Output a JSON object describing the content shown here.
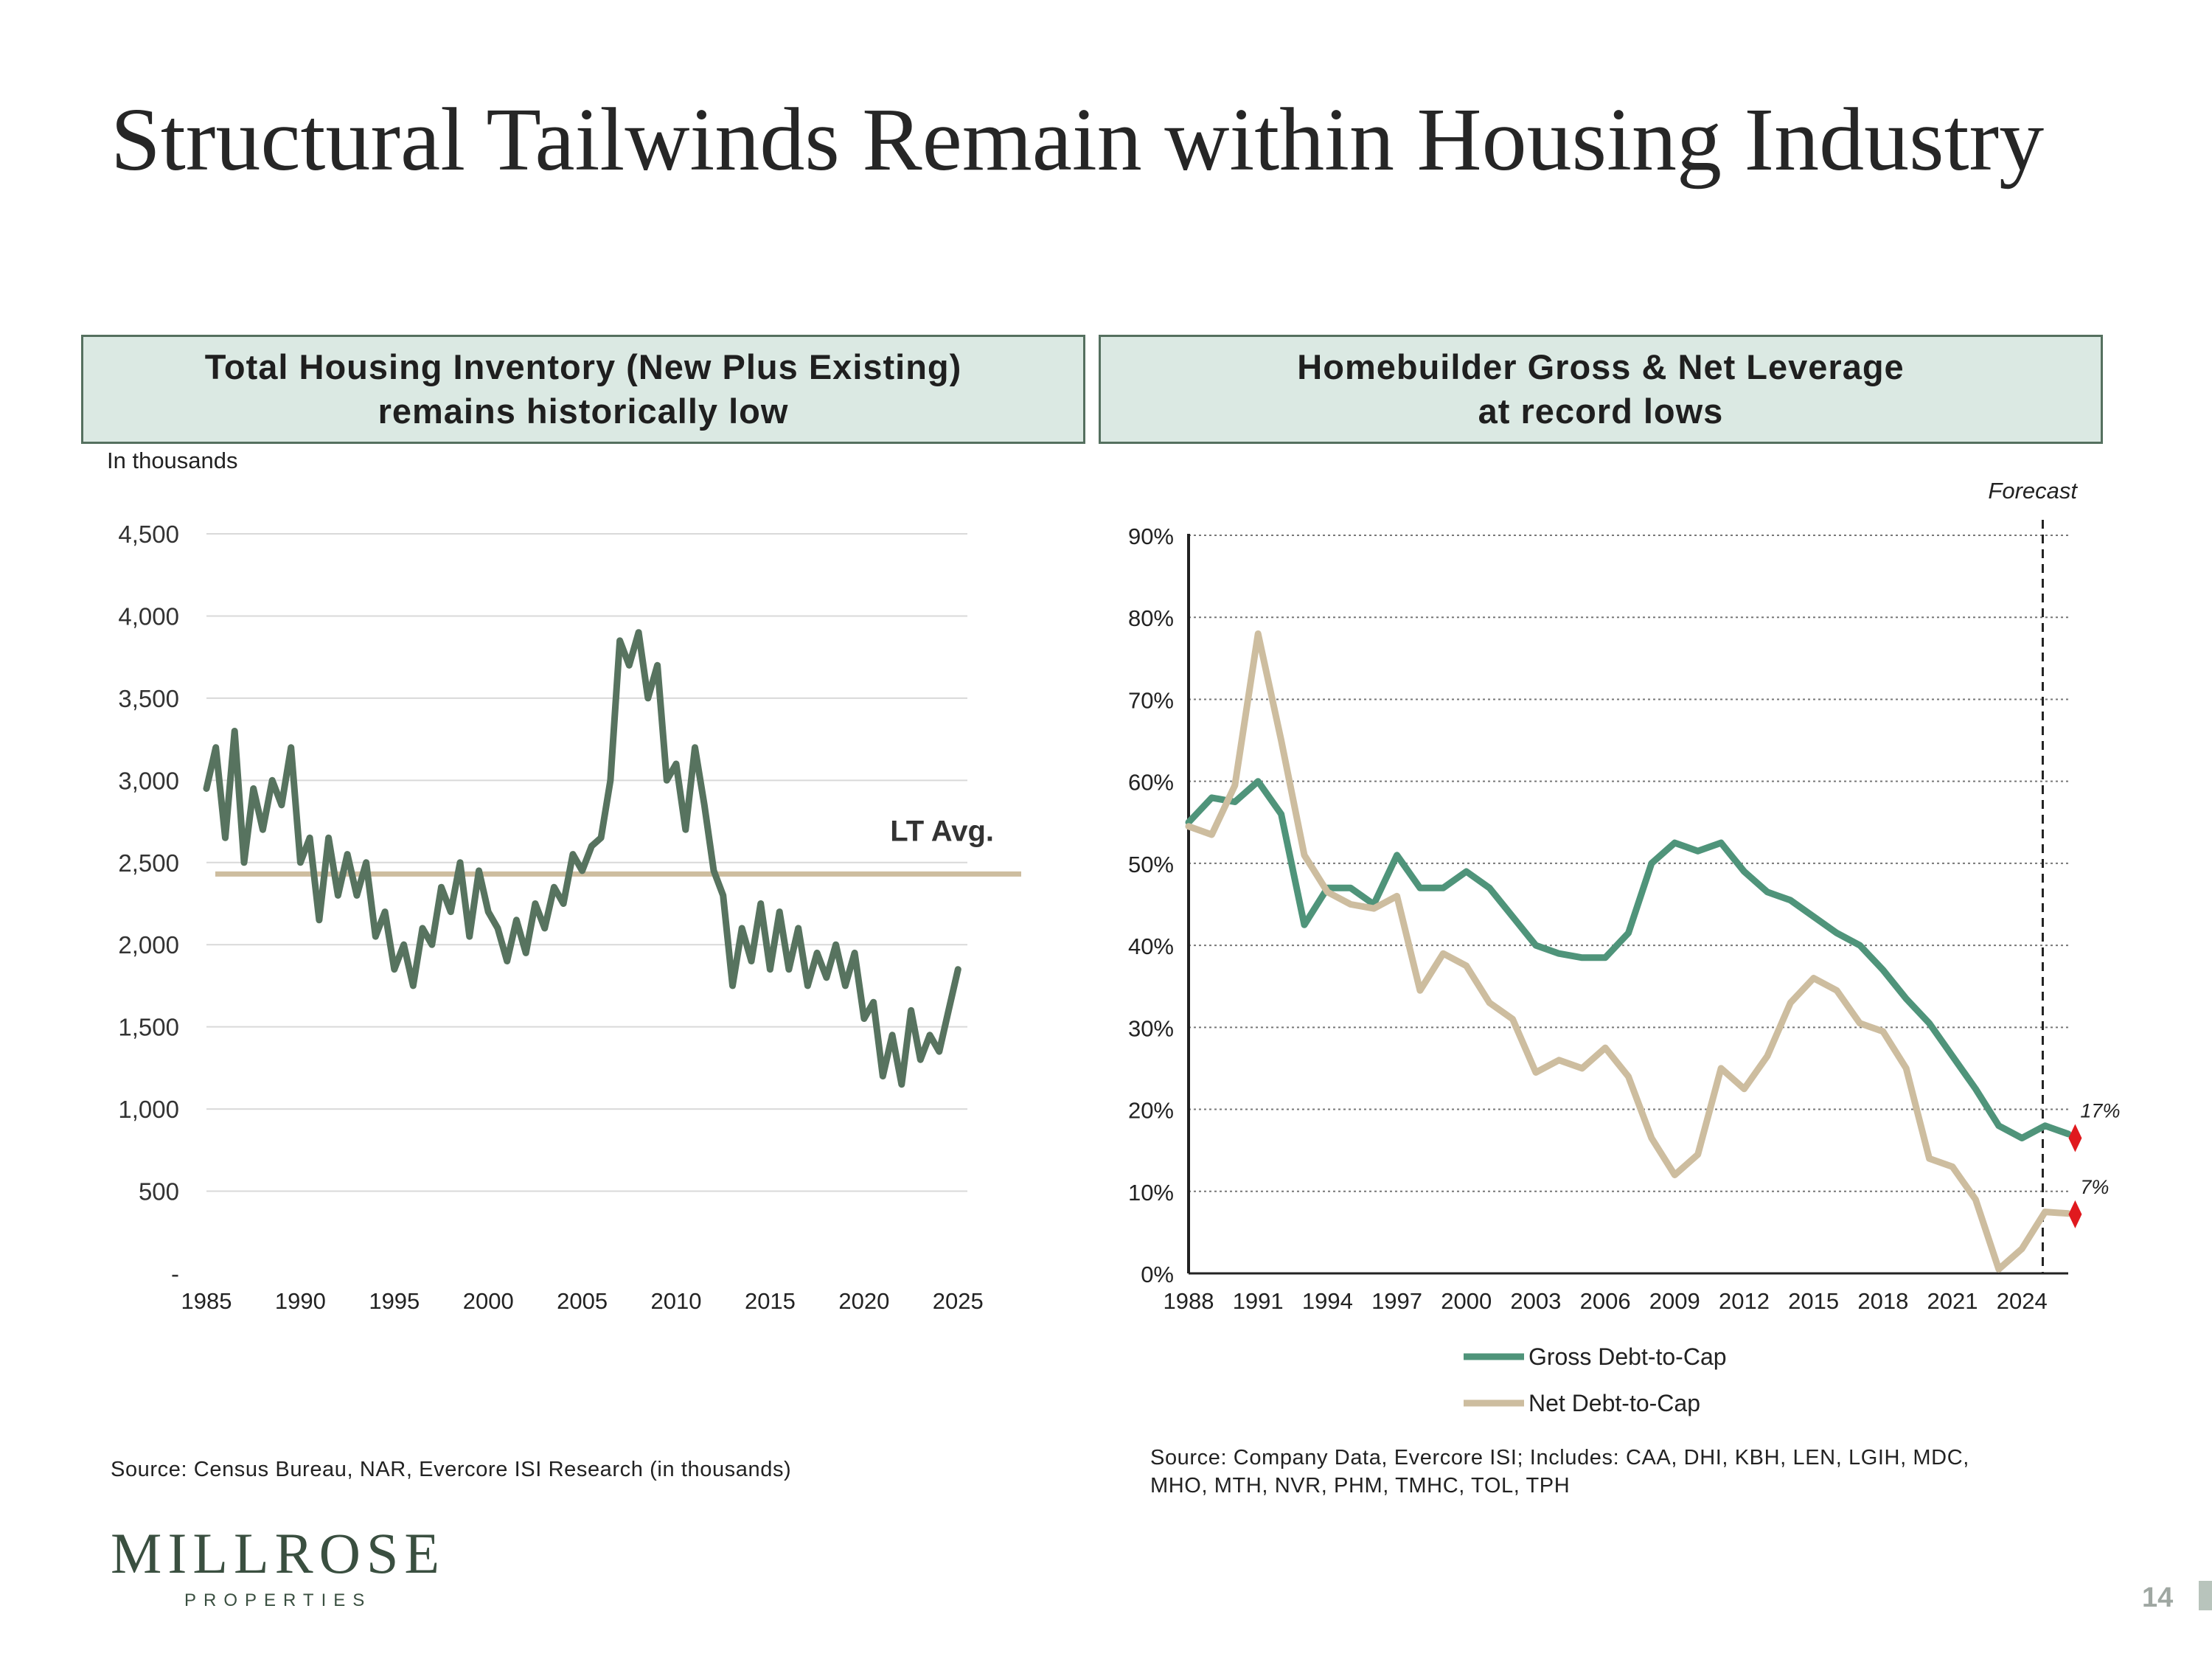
{
  "title": "Structural Tailwinds Remain within Housing Industry",
  "colors": {
    "dark_green": "#57735f",
    "green": "#4f947a",
    "tan": "#cdbd9f",
    "marker": "#e0191e",
    "panel_bg": "#dbe9e3",
    "grid": "#d9d9d9"
  },
  "left_panel": {
    "header_line1": "Total Housing Inventory (New Plus Existing)",
    "header_line2": "remains historically low",
    "units_note": "In thousands",
    "source": "Source: Census Bureau, NAR, Evercore ISI Research (in thousands)"
  },
  "right_panel": {
    "header_line1": "Homebuilder Gross & Net Leverage",
    "header_line2": "at record lows",
    "source_line1": "Source: Company Data, Evercore ISI; Includes: CAA, DHI, KBH, LEN, LGIH, MDC,",
    "source_line2": "MHO, MTH, NVR, PHM, TMHC, TOL, TPH"
  },
  "chart_data": [
    {
      "type": "line",
      "title": "Total Housing Inventory (New Plus Existing)",
      "ylabel": "In thousands",
      "xlim": [
        1985,
        2025.5
      ],
      "ylim": [
        0,
        4500
      ],
      "xticks": [
        1985,
        1990,
        1995,
        2000,
        2005,
        2010,
        2015,
        2020,
        2025
      ],
      "yticks": [
        0,
        500,
        1000,
        1500,
        2000,
        2500,
        3000,
        3500,
        4000,
        4500
      ],
      "ytick_labels": [
        "-",
        "500",
        "1,000",
        "1,500",
        "2,000",
        "2,500",
        "3,000",
        "3,500",
        "4,000",
        "4,500"
      ],
      "reference_line": {
        "label": "LT Avg.",
        "value": 2430
      },
      "series": [
        {
          "name": "Total Housing Inventory",
          "x": [
            1985,
            1985.5,
            1986,
            1986.5,
            1987,
            1987.5,
            1988,
            1988.5,
            1989,
            1989.5,
            1990,
            1990.5,
            1991,
            1991.5,
            1992,
            1992.5,
            1993,
            1993.5,
            1994,
            1994.5,
            1995,
            1995.5,
            1996,
            1996.5,
            1997,
            1997.5,
            1998,
            1998.5,
            1999,
            1999.5,
            2000,
            2000.5,
            2001,
            2001.5,
            2002,
            2002.5,
            2003,
            2003.5,
            2004,
            2004.5,
            2005,
            2005.5,
            2006,
            2006.5,
            2007,
            2007.5,
            2008,
            2008.5,
            2009,
            2009.5,
            2010,
            2010.5,
            2011,
            2011.5,
            2012,
            2012.5,
            2013,
            2013.5,
            2014,
            2014.5,
            2015,
            2015.5,
            2016,
            2016.5,
            2017,
            2017.5,
            2018,
            2018.5,
            2019,
            2019.5,
            2020,
            2020.5,
            2021,
            2021.5,
            2022,
            2022.5,
            2023,
            2023.5,
            2024,
            2024.5,
            2025
          ],
          "values": [
            2950,
            3200,
            2650,
            3300,
            2500,
            2950,
            2700,
            3000,
            2850,
            3200,
            2500,
            2650,
            2150,
            2650,
            2300,
            2550,
            2300,
            2500,
            2050,
            2200,
            1850,
            2000,
            1750,
            2100,
            2000,
            2350,
            2200,
            2500,
            2050,
            2450,
            2200,
            2100,
            1900,
            2150,
            1950,
            2250,
            2100,
            2350,
            2250,
            2550,
            2450,
            2600,
            2650,
            3000,
            3850,
            3700,
            3900,
            3500,
            3700,
            3000,
            3100,
            2700,
            3200,
            2850,
            2450,
            2300,
            1750,
            2100,
            1900,
            2250,
            1850,
            2200,
            1850,
            2100,
            1750,
            1950,
            1800,
            2000,
            1750,
            1950,
            1550,
            1650,
            1200,
            1450,
            1150,
            1600,
            1300,
            1450,
            1350,
            1600,
            1850
          ]
        }
      ]
    },
    {
      "type": "line",
      "title": "Homebuilder Gross & Net Leverage",
      "xlim": [
        1988,
        2026
      ],
      "ylim": [
        0,
        90
      ],
      "xticks": [
        1988,
        1991,
        1994,
        1997,
        2000,
        2003,
        2006,
        2009,
        2012,
        2015,
        2018,
        2021,
        2024
      ],
      "yticks": [
        0,
        10,
        20,
        30,
        40,
        50,
        60,
        70,
        80,
        90
      ],
      "ytick_labels": [
        "0%",
        "10%",
        "20%",
        "30%",
        "40%",
        "50%",
        "60%",
        "70%",
        "80%",
        "90%"
      ],
      "forecast_start": 2024.9,
      "forecast_label": "Forecast",
      "series": [
        {
          "name": "Gross Debt-to-Cap",
          "x": [
            1988,
            1989,
            1990,
            1991,
            1992,
            1993,
            1994,
            1995,
            1996,
            1997,
            1998,
            1999,
            2000,
            2001,
            2002,
            2003,
            2004,
            2005,
            2006,
            2007,
            2008,
            2009,
            2010,
            2011,
            2012,
            2013,
            2014,
            2015,
            2016,
            2017,
            2018,
            2019,
            2020,
            2021,
            2022,
            2023,
            2024,
            2025,
            2026
          ],
          "values": [
            55,
            58,
            57.5,
            60,
            56,
            42.5,
            47,
            47,
            45,
            51,
            47,
            47,
            49,
            47,
            43.5,
            40,
            39,
            38.5,
            38.5,
            41.5,
            50,
            52.5,
            51.5,
            52.5,
            49,
            46.5,
            45.5,
            43.5,
            41.5,
            40,
            37,
            33.5,
            30.5,
            26.5,
            22.5,
            18,
            16.5,
            18,
            17
          ],
          "endpoint_marker": {
            "x": 2026.3,
            "value": 16.5,
            "label": "17%"
          }
        },
        {
          "name": "Net Debt-to-Cap",
          "x": [
            1988,
            1989,
            1990,
            1991,
            1992,
            1993,
            1994,
            1995,
            1996,
            1997,
            1998,
            1999,
            2000,
            2001,
            2002,
            2003,
            2004,
            2005,
            2006,
            2007,
            2008,
            2009,
            2010,
            2011,
            2012,
            2013,
            2014,
            2015,
            2016,
            2017,
            2018,
            2019,
            2020,
            2021,
            2022,
            2023,
            2024,
            2025,
            2026
          ],
          "values": [
            54.5,
            53.5,
            59.5,
            78,
            65,
            51,
            46.5,
            45,
            44.5,
            46,
            34.5,
            39,
            37.5,
            33,
            31,
            24.5,
            26,
            25,
            27.5,
            24,
            16.5,
            12,
            14.5,
            25,
            22.5,
            26.5,
            33,
            36,
            34.5,
            30.5,
            29.5,
            25,
            14,
            13,
            9,
            0.5,
            3,
            7.5,
            7.3
          ],
          "endpoint_marker": {
            "x": 2026.3,
            "value": 7.2,
            "label": "7%"
          }
        }
      ]
    }
  ],
  "logo": {
    "name": "MILLROSE",
    "sub": "PROPERTIES"
  },
  "page_number": "14"
}
